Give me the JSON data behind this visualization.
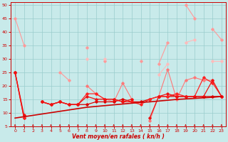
{
  "x": [
    0,
    1,
    2,
    3,
    4,
    5,
    6,
    7,
    8,
    9,
    10,
    11,
    12,
    13,
    14,
    15,
    16,
    17,
    18,
    19,
    20,
    21,
    22,
    23
  ],
  "series": [
    {
      "color": "#ff9999",
      "lw": 0.8,
      "marker": "D",
      "ms": 1.8,
      "y": [
        45,
        35,
        null,
        null,
        null,
        25,
        22,
        null,
        34,
        null,
        29,
        null,
        null,
        null,
        29,
        null,
        28,
        36,
        null,
        50,
        45,
        null,
        41,
        37
      ]
    },
    {
      "color": "#ffbbbb",
      "lw": 0.8,
      "marker": "D",
      "ms": 1.8,
      "y": [
        null,
        null,
        null,
        null,
        null,
        null,
        null,
        null,
        30,
        null,
        30,
        null,
        null,
        null,
        null,
        null,
        24,
        28,
        null,
        36,
        37,
        null,
        29,
        29
      ]
    },
    {
      "color": "#ff7777",
      "lw": 0.8,
      "marker": "D",
      "ms": 1.8,
      "y": [
        null,
        null,
        null,
        null,
        null,
        null,
        null,
        null,
        20,
        17,
        15,
        14,
        21,
        15,
        null,
        7,
        16,
        26,
        15,
        22,
        23,
        22,
        22,
        null
      ]
    },
    {
      "color": "#dd0000",
      "lw": 0.9,
      "marker": "D",
      "ms": 1.8,
      "y": [
        25,
        8,
        null,
        14,
        13,
        14,
        13,
        13,
        13,
        14,
        14,
        14,
        15,
        14,
        14,
        15,
        16,
        16,
        16,
        16,
        16,
        16,
        16,
        16
      ]
    },
    {
      "color": "#ff2222",
      "lw": 0.9,
      "marker": "D",
      "ms": 1.8,
      "y": [
        25,
        8,
        null,
        14,
        13,
        14,
        13,
        13,
        17,
        17,
        15,
        15,
        14,
        14,
        13,
        15,
        16,
        16,
        17,
        16,
        16,
        23,
        21,
        16
      ]
    },
    {
      "color": "#ee1111",
      "lw": 0.9,
      "marker": "D",
      "ms": 1.8,
      "y": [
        25,
        9,
        null,
        14,
        13,
        14,
        13,
        13,
        16,
        15,
        15,
        15,
        14,
        15,
        null,
        8,
        16,
        17,
        16,
        16,
        16,
        16,
        22,
        16
      ]
    },
    {
      "color": "#cc0000",
      "lw": 1.2,
      "marker": null,
      "ms": 0,
      "y": [
        8.0,
        8.5,
        9.0,
        9.5,
        10.0,
        10.5,
        11.0,
        11.5,
        12.0,
        12.3,
        12.6,
        12.9,
        13.2,
        13.5,
        13.8,
        14.0,
        14.3,
        14.6,
        14.9,
        15.1,
        15.3,
        15.5,
        15.7,
        16.0
      ]
    }
  ],
  "yticks": [
    5,
    10,
    15,
    20,
    25,
    30,
    35,
    40,
    45,
    50
  ],
  "xticks": [
    0,
    1,
    2,
    3,
    4,
    5,
    6,
    7,
    8,
    9,
    10,
    11,
    12,
    13,
    14,
    15,
    16,
    17,
    18,
    19,
    20,
    21,
    22,
    23
  ],
  "xlabel": "Vent moyen/en rafales ( kn/h )",
  "ylim": [
    5,
    51
  ],
  "xlim": [
    -0.5,
    23.5
  ],
  "bg_color": "#c8eaea",
  "grid_color": "#99cccc",
  "red": "#cc0000",
  "figsize": [
    3.2,
    2.0
  ],
  "dpi": 100
}
